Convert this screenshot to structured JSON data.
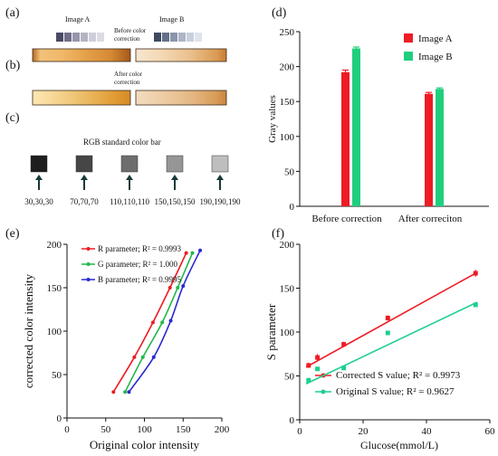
{
  "panel_labels": {
    "a": "(a)",
    "b": "(b)",
    "c": "(c)",
    "d": "(d)",
    "e": "(e)",
    "f": "(f)"
  },
  "panel_a": {
    "image_a_label": "Image A",
    "image_b_label": "Image B"
  },
  "panel_b": {
    "before_label_line1": "Before color",
    "before_label_line2": "correction",
    "after_label_line1": "After color",
    "after_label_line2": "correction"
  },
  "panel_c": {
    "title": "RGB standard color bar",
    "swatches": [
      {
        "rgb": "30,30,30",
        "color": "#1e1e1e"
      },
      {
        "rgb": "70,70,70",
        "color": "#464646"
      },
      {
        "rgb": "110,110,110",
        "color": "#6e6e6e"
      },
      {
        "rgb": "150,150,150",
        "color": "#969696"
      },
      {
        "rgb": "190,190,190",
        "color": "#bebebe"
      }
    ]
  },
  "chart_data": [
    {
      "panel": "d",
      "type": "bar",
      "categories": [
        "Before correction",
        "After correciton"
      ],
      "series": [
        {
          "name": "Image A",
          "values": [
            192,
            161
          ],
          "errors": [
            3,
            2
          ],
          "color": "#ee1c24"
        },
        {
          "name": "Image B",
          "values": [
            226,
            168
          ],
          "errors": [
            2,
            1.5
          ],
          "color": "#1fcf7e"
        }
      ],
      "xlabel": "",
      "ylabel": "Gray values",
      "ylim": [
        0,
        250
      ],
      "yticks": [
        0,
        50,
        100,
        150,
        200,
        250
      ],
      "legend": "top-right"
    },
    {
      "panel": "e",
      "type": "line",
      "xlabel": "Original color intensity",
      "ylabel": "corrected color intensity",
      "xlim": [
        0,
        200
      ],
      "ylim": [
        0,
        200
      ],
      "xticks": [
        0,
        50,
        100,
        150,
        200
      ],
      "yticks": [
        0,
        50,
        100,
        150,
        200
      ],
      "legend": "top-left",
      "series": [
        {
          "name": "R parameter; R² = 0.9993",
          "color": "#ee1c24",
          "points": [
            [
              60,
              30
            ],
            [
              87,
              70
            ],
            [
              111,
              110
            ],
            [
              133,
              150
            ],
            [
              154,
              190
            ]
          ]
        },
        {
          "name": "G parameter; R² = 1.000",
          "color": "#22b84a",
          "points": [
            [
              75,
              30
            ],
            [
              98,
              70
            ],
            [
              123,
              110
            ],
            [
              143,
              150
            ],
            [
              162,
              190
            ]
          ]
        },
        {
          "name": "B parameter; R² = 0.9995",
          "color": "#2a2ad0",
          "points": [
            [
              80,
              30
            ],
            [
              112,
              70
            ],
            [
              134,
              112
            ],
            [
              150,
              152
            ],
            [
              172,
              193
            ]
          ]
        }
      ]
    },
    {
      "panel": "f",
      "type": "scatter",
      "xlabel": "Glucose(mmol/L)",
      "ylabel": "S parameter",
      "xlim": [
        0,
        60
      ],
      "ylim": [
        0,
        200
      ],
      "xticks": [
        0,
        20,
        40,
        60
      ],
      "yticks": [
        0,
        50,
        100,
        150,
        200
      ],
      "legend": "bottom-right",
      "series": [
        {
          "name": "Corrected  S value; R² = 0.9973",
          "color": "#ee1c24",
          "x": [
            2.8,
            5.6,
            13.9,
            27.8,
            55.5
          ],
          "y": [
            62,
            71,
            86,
            116,
            167
          ],
          "errors": [
            3,
            4,
            3,
            3,
            4
          ],
          "fit": [
            [
              2,
              60
            ],
            [
              56,
              168
            ]
          ]
        },
        {
          "name": "Original S value; R² = 0.9627",
          "color": "#1fcf90",
          "x": [
            2.8,
            5.6,
            13.9,
            27.8,
            55.5
          ],
          "y": [
            45,
            58,
            59,
            99,
            131
          ],
          "errors": [
            3,
            2,
            2,
            2,
            2
          ],
          "fit": [
            [
              2,
              41
            ],
            [
              56,
              134
            ]
          ]
        }
      ]
    }
  ]
}
